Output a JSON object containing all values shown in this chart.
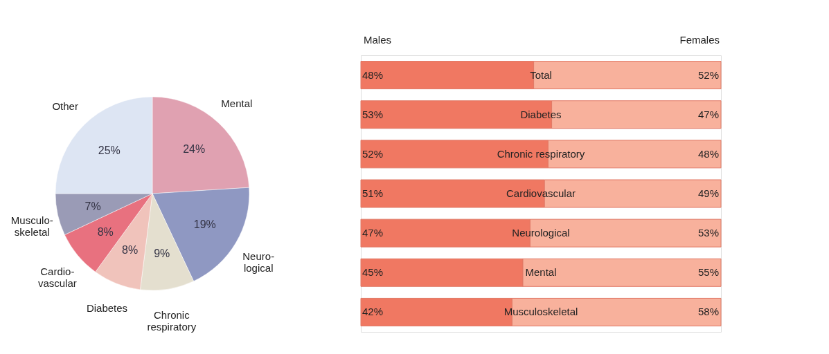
{
  "chart_data": [
    {
      "type": "pie",
      "categories": [
        "Mental",
        "Neuro-\nlogical",
        "Chronic\nrespiratory",
        "Diabetes",
        "Cardio-\nvascular",
        "Musculo-\nskeletal",
        "Other"
      ],
      "values": [
        24,
        19,
        9,
        8,
        8,
        7,
        25
      ],
      "colors": [
        "#e0a1b1",
        "#8f98c2",
        "#e4dfcf",
        "#f0c3bb",
        "#e8717f",
        "#9a9bb6",
        "#dde5f3"
      ],
      "value_labels": [
        "24%",
        "19%",
        "9%",
        "8%",
        "8%",
        "7%",
        "25%"
      ]
    },
    {
      "type": "bar",
      "orientation": "horizontal",
      "stacked": true,
      "categories": [
        "Total",
        "Diabetes",
        "Chronic respiratory",
        "Cardiovascular",
        "Neurological",
        "Mental",
        "Musculoskeletal"
      ],
      "series": [
        {
          "name": "Males",
          "color": "#f07862",
          "values": [
            48,
            53,
            52,
            51,
            47,
            45,
            42
          ],
          "value_labels": [
            "48%",
            "53%",
            "52%",
            "51%",
            "47%",
            "45%",
            "42%"
          ]
        },
        {
          "name": "Females",
          "color": "#f8b19c",
          "values": [
            52,
            47,
            48,
            49,
            53,
            55,
            58
          ],
          "value_labels": [
            "52%",
            "47%",
            "48%",
            "49%",
            "53%",
            "55%",
            "58%"
          ]
        }
      ]
    }
  ]
}
